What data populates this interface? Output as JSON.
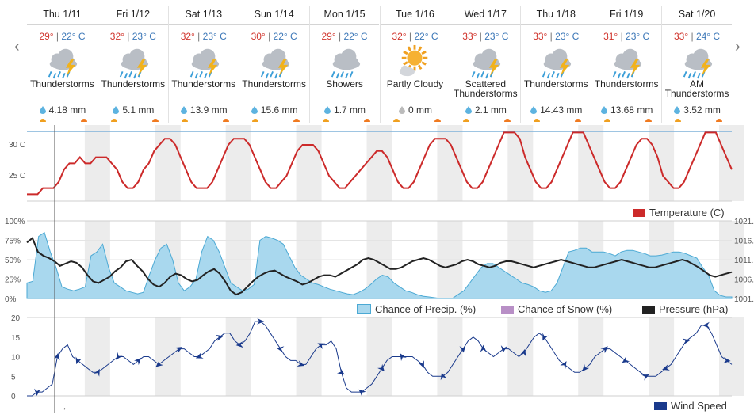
{
  "nav": {
    "prev": "‹",
    "next": "›"
  },
  "days": [
    {
      "label": "Thu 1/11",
      "hi": "29°",
      "lo": "22° C",
      "cond": "Thunderstorms",
      "icon": "thunderstorm-icon",
      "precip": "4.18 mm"
    },
    {
      "label": "Fri 1/12",
      "hi": "32°",
      "lo": "23° C",
      "cond": "Thunderstorms",
      "icon": "thunderstorm-icon",
      "precip": "5.1 mm"
    },
    {
      "label": "Sat 1/13",
      "hi": "32°",
      "lo": "23° C",
      "cond": "Thunderstorms",
      "icon": "thunderstorm-icon",
      "precip": "13.9 mm"
    },
    {
      "label": "Sun 1/14",
      "hi": "30°",
      "lo": "22° C",
      "cond": "Thunderstorms",
      "icon": "thunderstorm-icon",
      "precip": "15.6 mm"
    },
    {
      "label": "Mon 1/15",
      "hi": "29°",
      "lo": "22° C",
      "cond": "Showers",
      "icon": "showers-icon",
      "precip": "1.7 mm"
    },
    {
      "label": "Tue 1/16",
      "hi": "32°",
      "lo": "22° C",
      "cond": "Partly Cloudy",
      "icon": "partly-cloudy-icon",
      "precip": "0 mm"
    },
    {
      "label": "Wed 1/17",
      "hi": "33°",
      "lo": "23° C",
      "cond": "Scattered Thunderstorms",
      "icon": "thunderstorm-icon",
      "precip": "2.1 mm"
    },
    {
      "label": "Thu 1/18",
      "hi": "33°",
      "lo": "23° C",
      "cond": "Thunderstorms",
      "icon": "thunderstorm-icon",
      "precip": "14.43 mm"
    },
    {
      "label": "Fri 1/19",
      "hi": "31°",
      "lo": "23° C",
      "cond": "Thunderstorms",
      "icon": "thunderstorm-icon",
      "precip": "13.68 mm"
    },
    {
      "label": "Sat 1/20",
      "hi": "33°",
      "lo": "24° C",
      "cond": "AM Thunderstorms",
      "icon": "thunderstorm-icon",
      "precip": "3.52 mm"
    }
  ],
  "temperature": {
    "y_ticks": [
      "30 C",
      "25 C"
    ],
    "legend": "Temperature (C)",
    "color": "#cc2a2a",
    "values": [
      22,
      22,
      22,
      23,
      23,
      23,
      24,
      26,
      27,
      27,
      28,
      27,
      27,
      28,
      28,
      28,
      27,
      26,
      24,
      23,
      23,
      24,
      26,
      27,
      29,
      30,
      31,
      31,
      30,
      28,
      26,
      24,
      23,
      23,
      23,
      24,
      26,
      28,
      30,
      31,
      31,
      31,
      30,
      28,
      26,
      24,
      23,
      23,
      24,
      25,
      27,
      29,
      30,
      30,
      30,
      29,
      27,
      25,
      24,
      23,
      23,
      24,
      25,
      26,
      27,
      28,
      29,
      29,
      28,
      26,
      24,
      23,
      23,
      24,
      26,
      28,
      30,
      31,
      31,
      31,
      30,
      28,
      26,
      24,
      23,
      23,
      24,
      26,
      28,
      30,
      32,
      32,
      32,
      31,
      28,
      26,
      24,
      23,
      23,
      24,
      26,
      28,
      30,
      32,
      32,
      32,
      30,
      28,
      26,
      24,
      23,
      23,
      24,
      26,
      28,
      30,
      31,
      31,
      30,
      28,
      25,
      24,
      23,
      23,
      24,
      26,
      28,
      30,
      32,
      32,
      32,
      30,
      28,
      26
    ]
  },
  "precip_chart": {
    "y_ticks_left": [
      "100%",
      "75%",
      "50%",
      "25%",
      "0%"
    ],
    "y_ticks_right": [
      "1021.",
      "1016.",
      "1011.",
      "1006.",
      "1001."
    ],
    "legend": {
      "precip": "Chance of Precip. (%)",
      "snow": "Chance of Snow (%)",
      "pressure": "Pressure (hPa)"
    },
    "colors": {
      "precip": "#a9d8ee",
      "precip_line": "#4ba9d4",
      "snow": "#b88fc6",
      "pressure": "#222222"
    },
    "precip": [
      20,
      22,
      80,
      85,
      60,
      40,
      15,
      12,
      10,
      12,
      15,
      55,
      60,
      70,
      40,
      20,
      15,
      10,
      8,
      6,
      8,
      30,
      50,
      65,
      70,
      50,
      20,
      10,
      15,
      25,
      60,
      80,
      75,
      60,
      40,
      20,
      15,
      10,
      12,
      18,
      75,
      80,
      78,
      75,
      70,
      55,
      40,
      30,
      25,
      20,
      18,
      15,
      12,
      10,
      8,
      6,
      5,
      8,
      12,
      18,
      25,
      30,
      28,
      20,
      15,
      10,
      8,
      5,
      3,
      2,
      1,
      0,
      0,
      0,
      5,
      10,
      20,
      30,
      40,
      45,
      45,
      40,
      35,
      30,
      25,
      20,
      18,
      15,
      10,
      8,
      10,
      20,
      40,
      60,
      62,
      65,
      65,
      60,
      60,
      60,
      58,
      55,
      60,
      62,
      62,
      60,
      58,
      55,
      55,
      56,
      58,
      60,
      60,
      58,
      55,
      52,
      40,
      30,
      10,
      4,
      2,
      2
    ],
    "pressure": [
      72,
      78,
      60,
      55,
      52,
      48,
      42,
      45,
      48,
      46,
      40,
      30,
      22,
      20,
      24,
      28,
      35,
      40,
      48,
      50,
      42,
      35,
      25,
      18,
      15,
      20,
      28,
      32,
      30,
      25,
      22,
      24,
      30,
      35,
      38,
      32,
      22,
      10,
      5,
      8,
      15,
      22,
      28,
      32,
      35,
      36,
      32,
      28,
      25,
      22,
      18,
      20,
      24,
      28,
      30,
      30,
      28,
      32,
      36,
      40,
      44,
      50,
      52,
      50,
      46,
      42,
      38,
      38,
      40,
      44,
      48,
      50,
      52,
      50,
      46,
      42,
      40,
      42,
      44,
      48,
      50,
      48,
      44,
      42,
      40,
      42,
      46,
      48,
      48,
      46,
      44,
      42,
      40,
      42,
      44,
      46,
      48,
      50,
      48,
      46,
      44,
      42,
      40,
      40,
      42,
      44,
      46,
      48,
      50,
      48,
      46,
      44,
      42,
      40,
      40,
      42,
      44,
      46,
      48,
      50,
      48,
      44,
      40,
      35,
      30,
      28,
      30,
      32,
      34
    ]
  },
  "wind": {
    "y_ticks": [
      "20",
      "15",
      "10",
      "5",
      "0"
    ],
    "legend": "Wind Speed",
    "color": "#1a3a8c",
    "values": [
      0,
      0,
      1,
      1,
      2,
      3,
      10,
      12,
      13,
      10,
      9,
      8,
      7,
      6,
      6,
      7,
      8,
      9,
      10,
      10,
      9,
      8,
      9,
      10,
      10,
      9,
      8,
      9,
      10,
      11,
      12,
      12,
      11,
      10,
      10,
      11,
      12,
      14,
      15,
      16,
      16,
      14,
      13,
      14,
      16,
      19,
      19,
      18,
      16,
      14,
      12,
      10,
      9,
      9,
      8,
      8,
      10,
      12,
      13,
      13,
      14,
      12,
      6,
      2,
      1,
      1,
      1,
      2,
      3,
      5,
      7,
      9,
      10,
      10,
      10,
      10,
      10,
      9,
      8,
      6,
      5,
      5,
      5,
      6,
      8,
      10,
      12,
      14,
      15,
      14,
      12,
      11,
      10,
      11,
      12,
      12,
      11,
      10,
      11,
      13,
      15,
      16,
      15,
      13,
      11,
      9,
      8,
      7,
      6,
      6,
      7,
      8,
      10,
      11,
      12,
      12,
      11,
      10,
      9,
      8,
      7,
      6,
      5,
      5,
      5,
      6,
      7,
      8,
      10,
      12,
      14,
      15,
      16,
      18,
      18,
      16,
      13,
      10,
      9,
      8
    ]
  }
}
